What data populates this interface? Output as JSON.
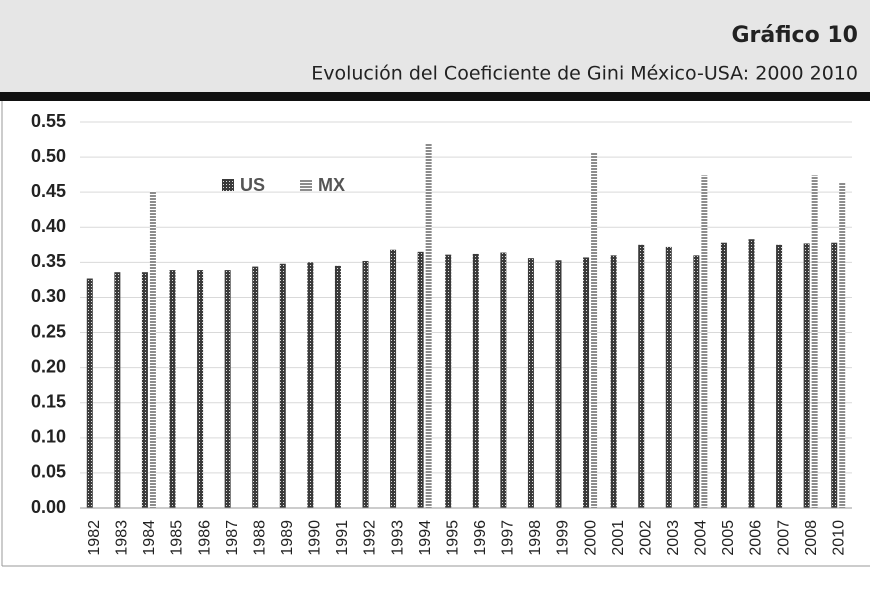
{
  "header": {
    "title": "Gráfico 10",
    "subtitle": "Evolución del Coeficiente de Gini México-USA: 2000 2010"
  },
  "chart_data": {
    "type": "bar",
    "categories": [
      "1982",
      "1983",
      "1984",
      "1985",
      "1986",
      "1987",
      "1988",
      "1989",
      "1990",
      "1991",
      "1992",
      "1993",
      "1994",
      "1995",
      "1996",
      "1997",
      "1998",
      "1999",
      "2000",
      "2001",
      "2002",
      "2003",
      "2004",
      "2005",
      "2006",
      "2007",
      "2008",
      "2010"
    ],
    "series": [
      {
        "name": "US",
        "color": "#3a3a3a",
        "values": [
          0.327,
          0.336,
          0.336,
          0.339,
          0.339,
          0.339,
          0.344,
          0.348,
          0.35,
          0.345,
          0.352,
          0.368,
          0.365,
          0.361,
          0.362,
          0.364,
          0.356,
          0.353,
          0.357,
          0.36,
          0.375,
          0.372,
          0.36,
          0.378,
          0.383,
          0.375,
          0.377,
          0.378
        ]
      },
      {
        "name": "MX",
        "color": "#8c8c8c",
        "values": [
          null,
          null,
          0.451,
          null,
          null,
          null,
          null,
          null,
          null,
          null,
          null,
          null,
          0.52,
          null,
          null,
          null,
          null,
          null,
          0.506,
          null,
          null,
          null,
          0.474,
          null,
          null,
          null,
          0.474,
          0.464
        ]
      }
    ],
    "ylim": [
      0,
      0.55
    ],
    "yticks": [
      {
        "value": 0,
        "label": "0.00"
      },
      {
        "value": 0.05,
        "label": "0.05"
      },
      {
        "value": 0.1,
        "label": "0.10"
      },
      {
        "value": 0.15,
        "label": "0.15"
      },
      {
        "value": 0.2,
        "label": "0.20"
      },
      {
        "value": 0.25,
        "label": "0.25"
      },
      {
        "value": 0.3,
        "label": "0.30"
      },
      {
        "value": 0.35,
        "label": "0.35"
      },
      {
        "value": 0.4,
        "label": "0.40"
      },
      {
        "value": 0.45,
        "label": "0.45"
      },
      {
        "value": 0.5,
        "label": "0.50"
      },
      {
        "value": 0.55,
        "label": "0.55"
      }
    ],
    "grid": true
  }
}
